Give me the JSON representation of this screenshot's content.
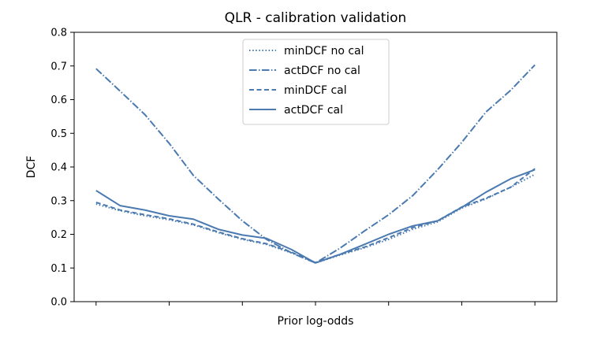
{
  "chart_data": {
    "type": "line",
    "title": "QLR - calibration validation",
    "xlabel": "Prior log-odds",
    "ylabel": "DCF",
    "x": [
      -3.0,
      -2.67,
      -2.33,
      -2.0,
      -1.67,
      -1.33,
      -1.0,
      -0.67,
      -0.33,
      0.0,
      0.33,
      0.67,
      1.0,
      1.33,
      1.67,
      2.0,
      2.33,
      2.67,
      3.0
    ],
    "xlim": [
      -3.3,
      3.3
    ],
    "x_ticks": [
      -3,
      -2,
      -1,
      0,
      1,
      2,
      3
    ],
    "ylim": [
      0.0,
      0.8
    ],
    "y_ticks": [
      "0.0",
      "0.1",
      "0.2",
      "0.3",
      "0.4",
      "0.5",
      "0.6",
      "0.7",
      "0.8"
    ],
    "grid": false,
    "legend_position": "upper-center",
    "color": "#4a7ab0",
    "series": [
      {
        "name": "minDCF no cal",
        "style": "dotted",
        "values": [
          0.29,
          0.27,
          0.255,
          0.243,
          0.228,
          0.205,
          0.185,
          0.17,
          0.145,
          0.115,
          0.138,
          0.16,
          0.185,
          0.215,
          0.237,
          0.278,
          0.305,
          0.34,
          0.378
        ]
      },
      {
        "name": "actDCF no cal",
        "style": "dashdot",
        "values": [
          0.692,
          0.625,
          0.555,
          0.47,
          0.375,
          0.305,
          0.24,
          0.185,
          0.145,
          0.115,
          0.158,
          0.21,
          0.258,
          0.315,
          0.392,
          0.473,
          0.563,
          0.628,
          0.703
        ]
      },
      {
        "name": "minDCF cal",
        "style": "dashed",
        "values": [
          0.295,
          0.272,
          0.258,
          0.246,
          0.23,
          0.207,
          0.187,
          0.172,
          0.147,
          0.116,
          0.14,
          0.162,
          0.19,
          0.22,
          0.24,
          0.281,
          0.307,
          0.34,
          0.395
        ]
      },
      {
        "name": "actDCF cal",
        "style": "solid",
        "values": [
          0.33,
          0.285,
          0.272,
          0.255,
          0.245,
          0.215,
          0.198,
          0.188,
          0.155,
          0.115,
          0.14,
          0.17,
          0.2,
          0.225,
          0.24,
          0.28,
          0.325,
          0.365,
          0.392
        ]
      }
    ],
    "x_end": 3.0
  }
}
